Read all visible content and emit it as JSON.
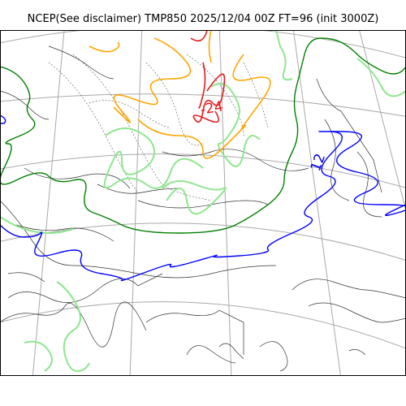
{
  "title": "NCEP(See disclaimer) TMP850 2025/12/04 00Z FT=96 (init 3000Z)",
  "contour_labels": [
    "-24",
    "12"
  ],
  "colors": {
    "cold_isotherm": "#e31a1c",
    "orange_isotherm": "#ffa500",
    "light_green_isotherm": "#8ee68e",
    "green_isotherm": "#008000",
    "blue_isotherm": "#0000ff",
    "coastline": "#333333",
    "graticule": "#a9a9a9",
    "thin_contour": "#555555"
  }
}
